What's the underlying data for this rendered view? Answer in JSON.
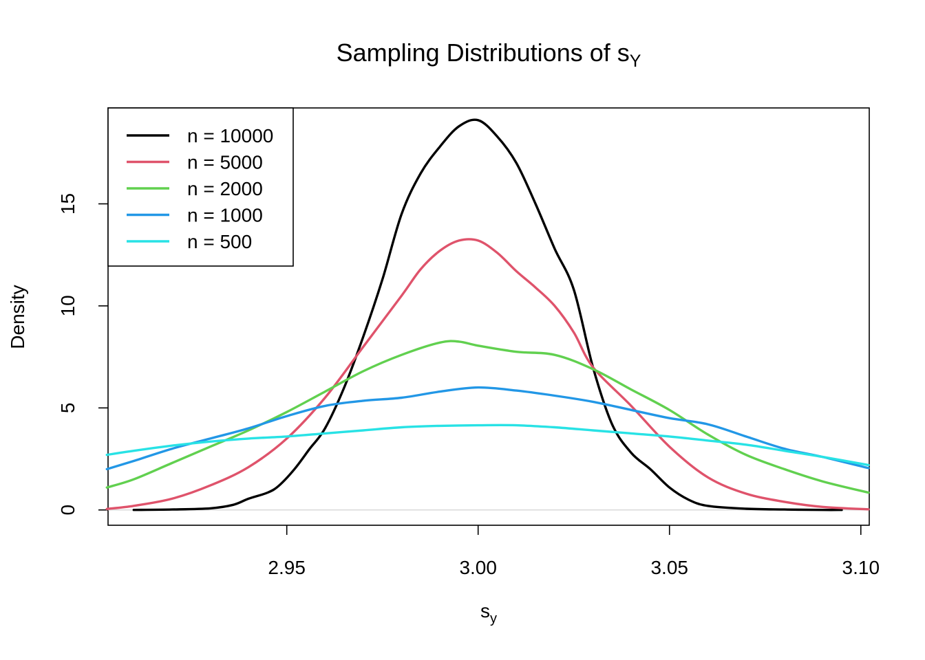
{
  "chart_data": {
    "type": "line",
    "title": "Sampling Distributions of s",
    "title_subscript": "Y",
    "xlabel": "s",
    "xlabel_subscript": "y",
    "ylabel": "Density",
    "xlim": [
      2.9033,
      3.1022
    ],
    "ylim": [
      -0.75,
      19.7
    ],
    "x_ticks": [
      2.95,
      3.0,
      3.05,
      3.1
    ],
    "x_tick_labels": [
      "2.95",
      "3.00",
      "3.05",
      "3.10"
    ],
    "y_ticks": [
      0,
      5,
      10,
      15
    ],
    "y_tick_labels": [
      "0",
      "5",
      "10",
      "15"
    ],
    "baseline": 0,
    "grid": false,
    "legend_position": "top-left",
    "series": [
      {
        "name": "n = 10000",
        "color": "#000000",
        "points": [
          [
            2.91,
            0.0
          ],
          [
            2.92,
            0.02
          ],
          [
            2.93,
            0.08
          ],
          [
            2.936,
            0.25
          ],
          [
            2.94,
            0.55
          ],
          [
            2.945,
            0.85
          ],
          [
            2.948,
            1.2
          ],
          [
            2.952,
            2.0
          ],
          [
            2.956,
            3.0
          ],
          [
            2.96,
            4.0
          ],
          [
            2.965,
            6.0
          ],
          [
            2.97,
            8.5
          ],
          [
            2.975,
            11.3
          ],
          [
            2.98,
            14.5
          ],
          [
            2.985,
            16.5
          ],
          [
            2.99,
            17.8
          ],
          [
            2.995,
            18.8
          ],
          [
            3.0,
            19.1
          ],
          [
            3.005,
            18.3
          ],
          [
            3.01,
            17.0
          ],
          [
            3.015,
            15.0
          ],
          [
            3.02,
            12.8
          ],
          [
            3.025,
            10.8
          ],
          [
            3.03,
            7.0
          ],
          [
            3.035,
            4.2
          ],
          [
            3.04,
            2.8
          ],
          [
            3.045,
            2.0
          ],
          [
            3.05,
            1.1
          ],
          [
            3.055,
            0.5
          ],
          [
            3.06,
            0.2
          ],
          [
            3.07,
            0.06
          ],
          [
            3.08,
            0.02
          ],
          [
            3.09,
            0.0
          ],
          [
            3.095,
            0.0
          ]
        ]
      },
      {
        "name": "n = 5000",
        "color": "#DF536B",
        "points": [
          [
            2.903,
            0.05
          ],
          [
            2.91,
            0.2
          ],
          [
            2.92,
            0.55
          ],
          [
            2.93,
            1.2
          ],
          [
            2.94,
            2.1
          ],
          [
            2.95,
            3.5
          ],
          [
            2.96,
            5.5
          ],
          [
            2.97,
            8.0
          ],
          [
            2.98,
            10.5
          ],
          [
            2.985,
            11.8
          ],
          [
            2.99,
            12.7
          ],
          [
            2.995,
            13.2
          ],
          [
            3.0,
            13.2
          ],
          [
            3.005,
            12.6
          ],
          [
            3.01,
            11.7
          ],
          [
            3.015,
            10.9
          ],
          [
            3.02,
            10.0
          ],
          [
            3.025,
            8.7
          ],
          [
            3.03,
            7.0
          ],
          [
            3.04,
            5.1
          ],
          [
            3.05,
            3.1
          ],
          [
            3.06,
            1.6
          ],
          [
            3.07,
            0.8
          ],
          [
            3.08,
            0.4
          ],
          [
            3.09,
            0.15
          ],
          [
            3.102,
            0.03
          ]
        ]
      },
      {
        "name": "n = 2000",
        "color": "#61D04F",
        "points": [
          [
            2.903,
            1.1
          ],
          [
            2.91,
            1.5
          ],
          [
            2.92,
            2.3
          ],
          [
            2.93,
            3.1
          ],
          [
            2.94,
            3.9
          ],
          [
            2.95,
            4.8
          ],
          [
            2.96,
            5.8
          ],
          [
            2.97,
            6.8
          ],
          [
            2.98,
            7.6
          ],
          [
            2.99,
            8.2
          ],
          [
            2.995,
            8.25
          ],
          [
            3.0,
            8.05
          ],
          [
            3.01,
            7.75
          ],
          [
            3.02,
            7.6
          ],
          [
            3.03,
            6.9
          ],
          [
            3.04,
            5.9
          ],
          [
            3.05,
            4.9
          ],
          [
            3.06,
            3.7
          ],
          [
            3.07,
            2.7
          ],
          [
            3.08,
            2.0
          ],
          [
            3.09,
            1.4
          ],
          [
            3.102,
            0.85
          ]
        ]
      },
      {
        "name": "n = 1000",
        "color": "#2297E6",
        "points": [
          [
            2.903,
            2.0
          ],
          [
            2.91,
            2.4
          ],
          [
            2.92,
            3.0
          ],
          [
            2.93,
            3.5
          ],
          [
            2.94,
            4.0
          ],
          [
            2.95,
            4.6
          ],
          [
            2.96,
            5.1
          ],
          [
            2.97,
            5.35
          ],
          [
            2.98,
            5.5
          ],
          [
            2.99,
            5.8
          ],
          [
            3.0,
            6.0
          ],
          [
            3.01,
            5.85
          ],
          [
            3.02,
            5.6
          ],
          [
            3.03,
            5.3
          ],
          [
            3.04,
            4.9
          ],
          [
            3.05,
            4.5
          ],
          [
            3.06,
            4.2
          ],
          [
            3.07,
            3.6
          ],
          [
            3.08,
            3.0
          ],
          [
            3.09,
            2.6
          ],
          [
            3.102,
            2.05
          ]
        ]
      },
      {
        "name": "n = 500",
        "color": "#28E2E5",
        "points": [
          [
            2.903,
            2.7
          ],
          [
            2.91,
            2.9
          ],
          [
            2.92,
            3.15
          ],
          [
            2.93,
            3.35
          ],
          [
            2.94,
            3.5
          ],
          [
            2.95,
            3.6
          ],
          [
            2.96,
            3.75
          ],
          [
            2.97,
            3.9
          ],
          [
            2.98,
            4.05
          ],
          [
            2.99,
            4.12
          ],
          [
            3.0,
            4.15
          ],
          [
            3.01,
            4.15
          ],
          [
            3.02,
            4.05
          ],
          [
            3.03,
            3.9
          ],
          [
            3.04,
            3.75
          ],
          [
            3.05,
            3.6
          ],
          [
            3.06,
            3.4
          ],
          [
            3.07,
            3.2
          ],
          [
            3.08,
            2.9
          ],
          [
            3.09,
            2.6
          ],
          [
            3.102,
            2.2
          ]
        ]
      }
    ]
  }
}
